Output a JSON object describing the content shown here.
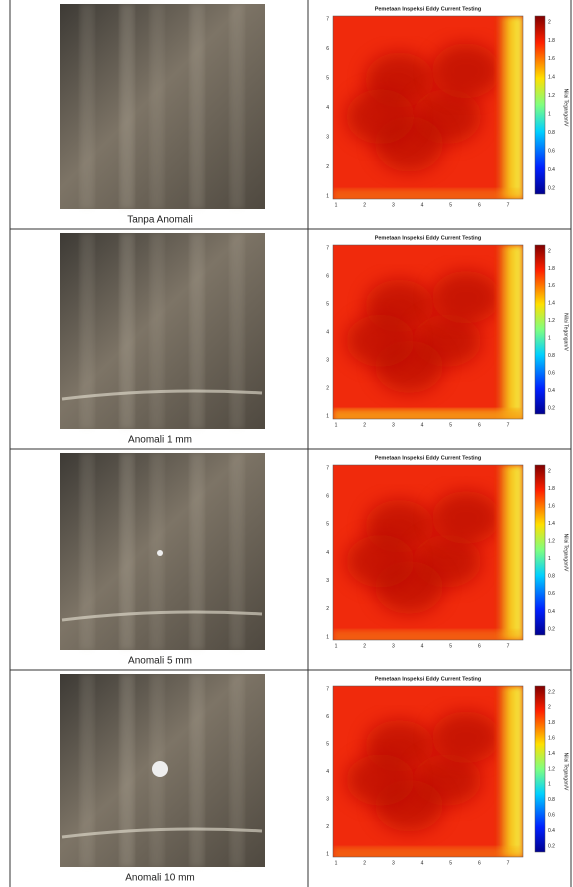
{
  "rows": [
    {
      "caption": "Tanpa Anomali",
      "map": {
        "title": "Pemetaan Inspeksi Eddy Current Testing",
        "xticks": [
          1,
          2,
          3,
          4,
          5,
          6,
          7
        ],
        "yticks": [
          1,
          2,
          3,
          4,
          5,
          6,
          7
        ],
        "colorbar_ticks": [
          0.2,
          0.4,
          0.6,
          0.8,
          1,
          1.2,
          1.4,
          1.6,
          1.8,
          2
        ],
        "colorbar_label": "Nilai Tegangan/V"
      }
    },
    {
      "caption": "Anomali 1 mm",
      "map": {
        "title": "Pemetaan Inspeksi Eddy Current Testing",
        "xticks": [
          1,
          2,
          3,
          4,
          5,
          6,
          7
        ],
        "yticks": [
          1,
          2,
          3,
          4,
          5,
          6,
          7
        ],
        "colorbar_ticks": [
          0.2,
          0.4,
          0.6,
          0.8,
          1,
          1.2,
          1.4,
          1.6,
          1.8,
          2
        ],
        "colorbar_label": "Nilai Tegangan/V"
      }
    },
    {
      "caption": "Anomali 5 mm",
      "map": {
        "title": "Pemetaan Inspeksi Eddy Current Testing",
        "xticks": [
          1,
          2,
          3,
          4,
          5,
          6,
          7
        ],
        "yticks": [
          1,
          2,
          3,
          4,
          5,
          6,
          7
        ],
        "colorbar_ticks": [
          0.2,
          0.4,
          0.6,
          0.8,
          1,
          1.2,
          1.4,
          1.6,
          1.8,
          2
        ],
        "colorbar_label": "Nilai Tegangan/V"
      }
    },
    {
      "caption": "Anomali 10 mm",
      "map": {
        "title": "Pemetaan Inspeksi Eddy Current Testing",
        "xticks": [
          1,
          2,
          3,
          4,
          5,
          6,
          7
        ],
        "yticks": [
          1,
          2,
          3,
          4,
          5,
          6,
          7
        ],
        "colorbar_ticks": [
          0.2,
          0.4,
          0.6,
          0.8,
          1,
          1.2,
          1.4,
          1.6,
          1.8,
          2,
          2.2
        ],
        "colorbar_label": "Nilai Tegangan/V"
      }
    }
  ]
}
